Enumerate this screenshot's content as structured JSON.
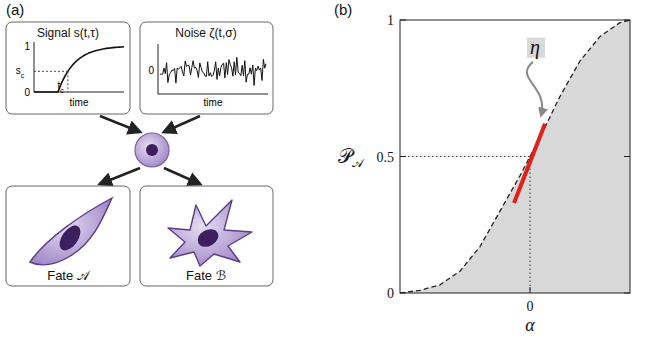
{
  "panel_a": {
    "label": "(a)",
    "signal": {
      "title": "Signal s(t,τ)",
      "xlabel": "time",
      "ytick_top": "1",
      "ytick_bottom": "0",
      "threshold": {
        "base": "s",
        "sub": "c"
      },
      "time_marker": {
        "base": "t",
        "sub": "c"
      }
    },
    "noise": {
      "title": "Noise ζ(t,σ)",
      "xlabel": "time",
      "ytick": "0"
    },
    "fates": [
      {
        "label": "Fate 𝒜"
      },
      {
        "label": "Fate ℬ"
      }
    ]
  },
  "chart_data": {
    "type": "area",
    "panel_label": "(b)",
    "x_label": "α",
    "y_label": {
      "base": "𝒫",
      "sub": "𝒜"
    },
    "x": [
      -1.3,
      -1.1,
      -0.9,
      -0.7,
      -0.5,
      -0.3,
      -0.1,
      0,
      0.1,
      0.3,
      0.5,
      0.7,
      0.9,
      1.0
    ],
    "values": [
      0.0,
      0.01,
      0.03,
      0.08,
      0.17,
      0.3,
      0.43,
      0.5,
      0.57,
      0.72,
      0.85,
      0.94,
      0.99,
      1.0
    ],
    "color": "#d8d8d8",
    "line_style": "dashed",
    "xlim": [
      -1.3,
      1.0
    ],
    "xticks": [
      0
    ],
    "ylim": [
      0,
      1
    ],
    "yticks": [
      0,
      0.5,
      1
    ],
    "reference_point": {
      "x": 0,
      "y": 0.5
    },
    "annotations": [
      {
        "text": "η",
        "x": [
          -0.16,
          0.15
        ],
        "y": [
          0.33,
          0.62
        ],
        "color": "#e0201b"
      }
    ]
  }
}
